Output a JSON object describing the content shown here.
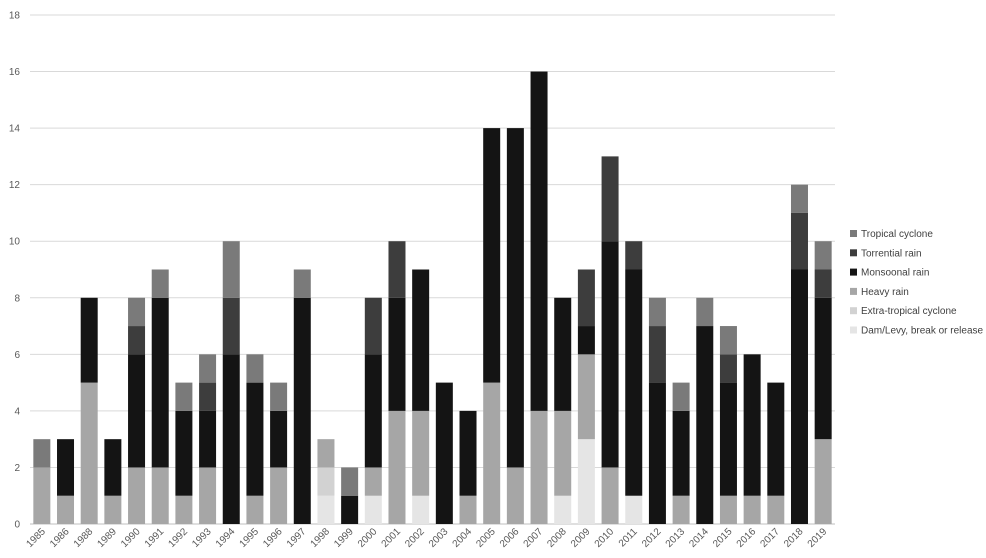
{
  "chart_data": {
    "type": "bar",
    "stacked": true,
    "categories": [
      "1985",
      "1986",
      "1988",
      "1989",
      "1990",
      "1991",
      "1992",
      "1993",
      "1994",
      "1995",
      "1996",
      "1997",
      "1998",
      "1999",
      "2000",
      "2001",
      "2002",
      "2003",
      "2004",
      "2005",
      "2006",
      "2007",
      "2008",
      "2009",
      "2010",
      "2011",
      "2012",
      "2013",
      "2014",
      "2015",
      "2016",
      "2017",
      "2018",
      "2019"
    ],
    "series": [
      {
        "name": "Dam/Levy, break or release",
        "color": "#e5e5e5",
        "values": [
          0,
          0,
          0,
          0,
          0,
          0,
          0,
          0,
          0,
          0,
          0,
          0,
          1,
          0,
          1,
          0,
          1,
          0,
          0,
          0,
          0,
          0,
          1,
          3,
          0,
          1,
          0,
          0,
          0,
          0,
          0,
          0,
          0,
          0
        ]
      },
      {
        "name": "Extra-tropical cyclone",
        "color": "#d2d2d2",
        "values": [
          0,
          0,
          0,
          0,
          0,
          0,
          0,
          0,
          0,
          0,
          0,
          0,
          1,
          0,
          0,
          0,
          0,
          0,
          0,
          0,
          0,
          0,
          0,
          0,
          0,
          0,
          0,
          0,
          0,
          0,
          0,
          0,
          0,
          0
        ]
      },
      {
        "name": "Heavy rain",
        "color": "#a6a6a6",
        "values": [
          2,
          1,
          5,
          1,
          2,
          2,
          1,
          2,
          0,
          1,
          2,
          0,
          1,
          0,
          1,
          4,
          3,
          0,
          1,
          5,
          2,
          4,
          3,
          3,
          2,
          0,
          0,
          1,
          0,
          1,
          1,
          1,
          0,
          3
        ]
      },
      {
        "name": "Monsoonal rain",
        "color": "#141414",
        "values": [
          0,
          2,
          3,
          2,
          4,
          6,
          3,
          2,
          6,
          4,
          2,
          8,
          0,
          1,
          4,
          4,
          5,
          5,
          3,
          9,
          12,
          12,
          4,
          1,
          8,
          8,
          5,
          3,
          7,
          4,
          5,
          4,
          9,
          5
        ]
      },
      {
        "name": "Torrential rain",
        "color": "#3d3d3d",
        "values": [
          0,
          0,
          0,
          0,
          1,
          0,
          0,
          1,
          2,
          0,
          0,
          0,
          0,
          0,
          2,
          2,
          0,
          0,
          0,
          0,
          0,
          0,
          0,
          2,
          3,
          1,
          2,
          0,
          0,
          1,
          0,
          0,
          2,
          1
        ]
      },
      {
        "name": "Tropical cyclone",
        "color": "#7a7a7a",
        "values": [
          1,
          0,
          0,
          0,
          1,
          1,
          1,
          1,
          2,
          1,
          1,
          1,
          0,
          1,
          0,
          0,
          0,
          0,
          0,
          0,
          0,
          0,
          0,
          0,
          0,
          0,
          1,
          1,
          1,
          1,
          0,
          0,
          1,
          1
        ]
      }
    ],
    "legend_order": [
      "Tropical cyclone",
      "Torrential rain",
      "Monsoonal rain",
      "Heavy rain",
      "Extra-tropical cyclone",
      "Dam/Levy, break or release"
    ],
    "ylim": [
      0,
      18
    ],
    "yticks": [
      0,
      2,
      4,
      6,
      8,
      10,
      12,
      14,
      16,
      18
    ],
    "grid": true,
    "legend_position": "right",
    "gridline_color": "#d9d9d9"
  }
}
